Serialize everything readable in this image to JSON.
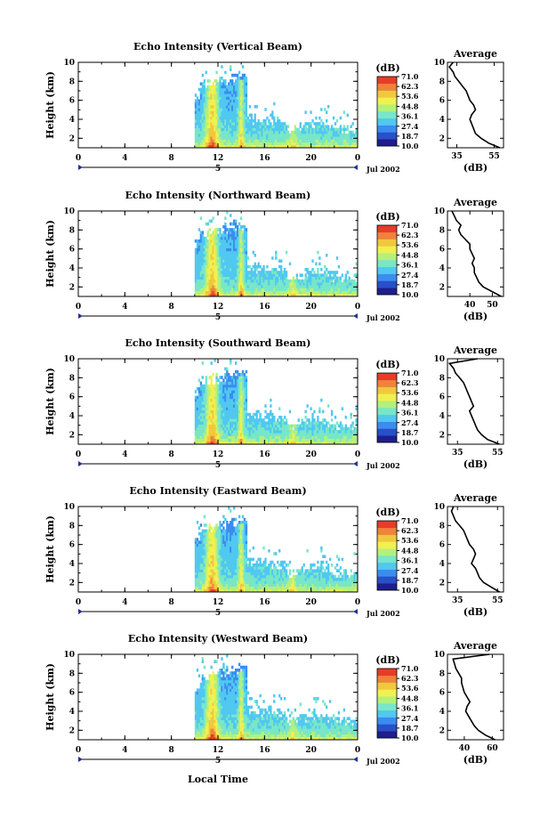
{
  "xaxis_title": "Local Time",
  "colorbar": {
    "unit_label": "(dB)",
    "ticks": [
      "71.0",
      "62.3",
      "53.6",
      "44.8",
      "36.1",
      "27.4",
      "18.7",
      "10.0"
    ],
    "min": 10.0,
    "max": 71.0,
    "colors": [
      "#1e1e8c",
      "#2850c8",
      "#3c8cf0",
      "#50c8f0",
      "#78e6c8",
      "#b4f07c",
      "#f0f050",
      "#f0c83c",
      "#f0823c",
      "#e63c28"
    ]
  },
  "chart_data": [
    {
      "type": "heatmap",
      "title": "Echo Intensity (Vertical Beam)",
      "ylabel": "Height (km)",
      "x_ticks": [
        "0",
        "4",
        "8",
        "12",
        "16",
        "20",
        "0"
      ],
      "y_ticks": [
        "2",
        "4",
        "6",
        "8",
        "10"
      ],
      "xlim": [
        0,
        24
      ],
      "ylim": [
        1,
        10
      ],
      "date_label": "Jul 2002",
      "day_label": "5",
      "profile": {
        "title": "Average",
        "xlabel": "(dB)",
        "xlim": [
          30,
          60
        ],
        "x_ticks": [
          {
            "v": 35,
            "t": "35"
          },
          {
            "v": 55,
            "t": "55"
          }
        ],
        "y_ticks": [
          "2",
          "4",
          "6",
          "8",
          "10"
        ],
        "heights": [
          1.0,
          1.5,
          2.0,
          2.5,
          3.0,
          3.5,
          4.0,
          4.5,
          5.0,
          5.5,
          6.0,
          6.5,
          7.0,
          7.5,
          8.0,
          8.5,
          9.0,
          9.5,
          10.0
        ],
        "values": [
          58,
          52,
          48,
          45,
          44,
          43,
          42,
          43,
          45,
          44,
          42,
          41,
          40,
          38,
          36,
          34,
          33,
          31,
          33
        ]
      }
    },
    {
      "type": "heatmap",
      "title": "Echo Intensity (Northward Beam)",
      "ylabel": "Height (km)",
      "x_ticks": [
        "0",
        "4",
        "8",
        "12",
        "16",
        "20",
        "0"
      ],
      "y_ticks": [
        "2",
        "4",
        "6",
        "8",
        "10"
      ],
      "xlim": [
        0,
        24
      ],
      "ylim": [
        1,
        10
      ],
      "date_label": "Jul 2002",
      "day_label": "5",
      "profile": {
        "title": "Average",
        "xlabel": "(dB)",
        "xlim": [
          30,
          55
        ],
        "x_ticks": [
          {
            "v": 40,
            "t": "40"
          },
          {
            "v": 50,
            "t": "50"
          }
        ],
        "y_ticks": [
          "2",
          "4",
          "6",
          "8",
          "10"
        ],
        "heights": [
          1.0,
          1.5,
          2.0,
          2.5,
          3.0,
          3.5,
          4.0,
          4.5,
          5.0,
          5.5,
          6.0,
          6.5,
          7.0,
          7.5,
          8.0,
          8.5,
          9.0,
          9.5,
          10.0
        ],
        "values": [
          54,
          50,
          46,
          44,
          43,
          42,
          42,
          41,
          42,
          41,
          40,
          40,
          38,
          36,
          35,
          36,
          34,
          33,
          32
        ]
      }
    },
    {
      "type": "heatmap",
      "title": "Echo Intensity (Southward Beam)",
      "ylabel": "Height (km)",
      "x_ticks": [
        "0",
        "4",
        "8",
        "12",
        "16",
        "20",
        "0"
      ],
      "y_ticks": [
        "2",
        "4",
        "6",
        "8",
        "10"
      ],
      "xlim": [
        0,
        24
      ],
      "ylim": [
        1,
        10
      ],
      "date_label": "Jul 2002",
      "day_label": "5",
      "profile": {
        "title": "Average",
        "xlabel": "(dB)",
        "xlim": [
          30,
          58
        ],
        "x_ticks": [
          {
            "v": 35,
            "t": "35"
          },
          {
            "v": 55,
            "t": "55"
          }
        ],
        "y_ticks": [
          "2",
          "4",
          "6",
          "8",
          "10"
        ],
        "heights": [
          1.0,
          1.5,
          2.0,
          2.5,
          3.0,
          3.5,
          4.0,
          4.5,
          5.0,
          5.5,
          6.0,
          6.5,
          7.0,
          7.5,
          8.0,
          8.5,
          9.0,
          9.5,
          10.0
        ],
        "values": [
          56,
          50,
          47,
          45,
          44,
          43,
          42,
          41,
          43,
          42,
          41,
          40,
          39,
          38,
          36,
          34,
          33,
          31,
          45
        ]
      }
    },
    {
      "type": "heatmap",
      "title": "Echo Intensity (Eastward Beam)",
      "ylabel": "Height (km)",
      "x_ticks": [
        "0",
        "4",
        "8",
        "12",
        "16",
        "20",
        "0"
      ],
      "y_ticks": [
        "2",
        "4",
        "6",
        "8",
        "10"
      ],
      "xlim": [
        0,
        24
      ],
      "ylim": [
        1,
        10
      ],
      "date_label": "Jul 2002",
      "day_label": "5",
      "profile": {
        "title": "Average",
        "xlabel": "(dB)",
        "xlim": [
          30,
          58
        ],
        "x_ticks": [
          {
            "v": 35,
            "t": "35"
          },
          {
            "v": 55,
            "t": "55"
          }
        ],
        "y_ticks": [
          "2",
          "4",
          "6",
          "8",
          "10"
        ],
        "heights": [
          1.0,
          1.5,
          2.0,
          2.5,
          3.0,
          3.5,
          4.0,
          4.5,
          5.0,
          5.5,
          6.0,
          6.5,
          7.0,
          7.5,
          8.0,
          8.5,
          9.0,
          9.5,
          10.0
        ],
        "values": [
          56,
          52,
          48,
          46,
          45,
          44,
          42,
          43,
          44,
          43,
          41,
          40,
          39,
          38,
          36,
          34,
          33,
          32,
          33
        ]
      }
    },
    {
      "type": "heatmap",
      "title": "Echo Intensity (Westward Beam)",
      "ylabel": "Height (km)",
      "x_ticks": [
        "0",
        "4",
        "8",
        "12",
        "16",
        "20",
        "0"
      ],
      "y_ticks": [
        "2",
        "4",
        "6",
        "8",
        "10"
      ],
      "xlim": [
        0,
        24
      ],
      "ylim": [
        1,
        10
      ],
      "date_label": "Jul 2002",
      "day_label": "5",
      "profile": {
        "title": "Average",
        "xlabel": "(dB)",
        "xlim": [
          28,
          68
        ],
        "x_ticks": [
          {
            "v": 40,
            "t": "40"
          },
          {
            "v": 60,
            "t": "60"
          }
        ],
        "y_ticks": [
          "2",
          "4",
          "6",
          "8",
          "10"
        ],
        "heights": [
          1.0,
          1.5,
          2.0,
          2.5,
          3.0,
          3.5,
          4.0,
          4.5,
          5.0,
          5.5,
          6.0,
          6.5,
          7.0,
          7.5,
          8.0,
          8.5,
          9.0,
          9.5,
          10.0
        ],
        "values": [
          62,
          55,
          50,
          47,
          45,
          43,
          41,
          42,
          44,
          42,
          40,
          39,
          38,
          38,
          36,
          34,
          33,
          32,
          58
        ]
      }
    }
  ]
}
